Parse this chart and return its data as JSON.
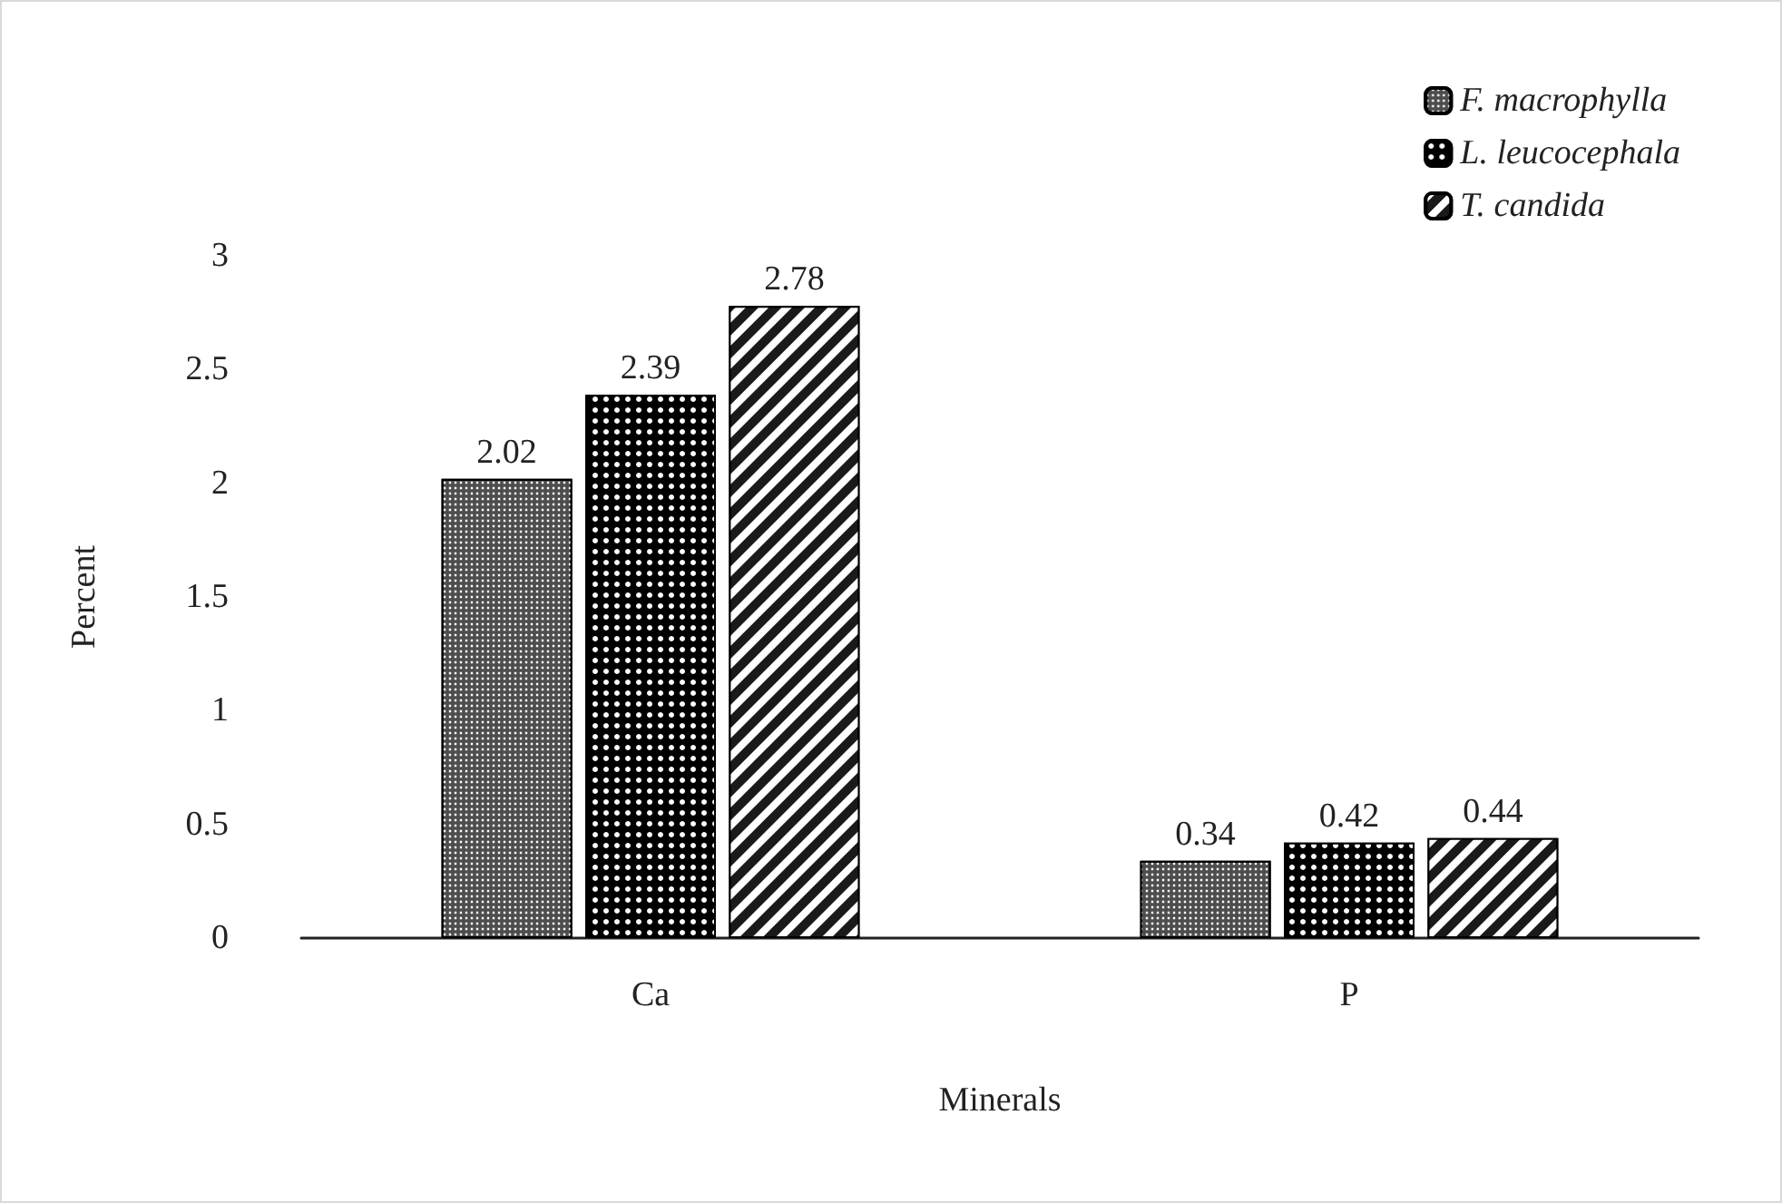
{
  "chart_data": {
    "type": "bar",
    "xlabel": "Minerals",
    "ylabel": "Percent",
    "categories": [
      "Ca",
      "P"
    ],
    "series": [
      {
        "name": "F. macrophylla",
        "color": "#4d4d4d",
        "values": [
          2.02,
          0.34
        ]
      },
      {
        "name": "L. leucocephala",
        "color": "#000000",
        "values": [
          2.39,
          0.42
        ]
      },
      {
        "name": "T. candida",
        "color": "#1a1a1a",
        "values": [
          2.78,
          0.44
        ]
      }
    ],
    "ylim": [
      0,
      3
    ],
    "yticks": [
      0,
      0.5,
      1,
      1.5,
      2,
      2.5,
      3
    ],
    "grid": false,
    "legend": "top right",
    "data_labels": true
  }
}
